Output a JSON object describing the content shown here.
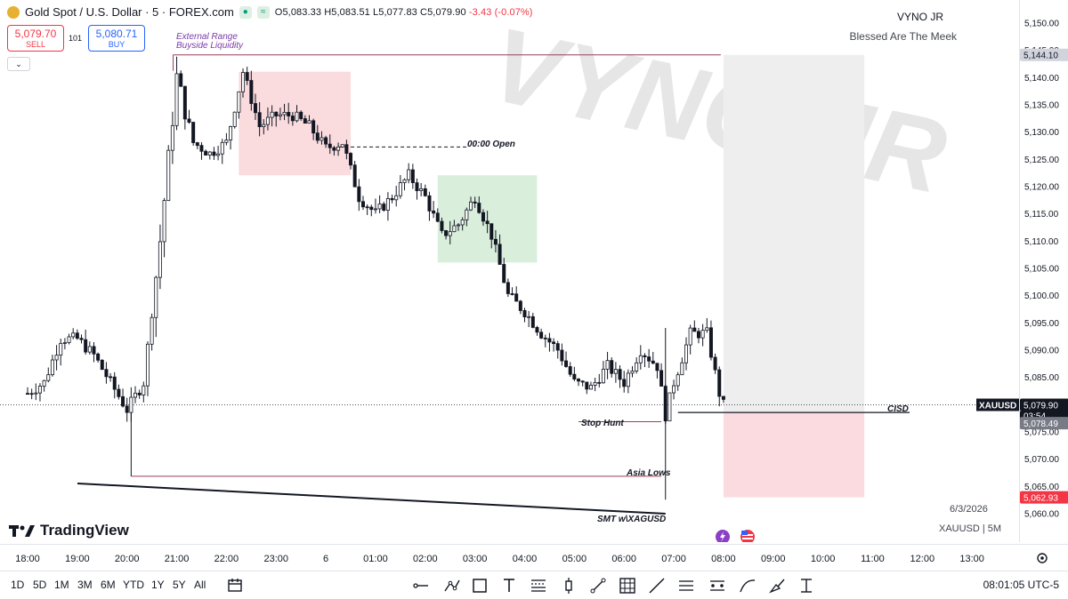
{
  "header": {
    "symbol_title": "Gold Spot / U.S. Dollar · 5 · FOREX.com",
    "ohlc": "O5,083.33 H5,083.51 L5,077.83 C5,079.90",
    "change": "-3.43 (-0.07%)",
    "sell_price": "5,079.70",
    "sell_label": "SELL",
    "spread": "101",
    "buy_price": "5,080.71",
    "buy_label": "BUY",
    "collapse_icon": "chevron-down-icon"
  },
  "branding": {
    "author": "VYNO JR",
    "tagline": "Blessed Are The Meek",
    "watermark": "VYNO JR",
    "platform": "TradingView",
    "date": "6/3/2026",
    "symbol_tf": "XAUUSD | 5M"
  },
  "annotations": {
    "external_range": "External Range",
    "buyside": "Buyside Liquidity",
    "open_line": "00:00 Open",
    "stop_hunt": "Stop Hunt",
    "asia_lows": "Asia Lows",
    "smt": "SMT w\\XAGUSD",
    "cisd": "CISD"
  },
  "price_tags": {
    "top": "5,144.10",
    "symbol": "XAUUSD",
    "current": "5,079.90",
    "countdown": "03:54",
    "entry": "5,078.49",
    "target": "5,062.93"
  },
  "bottom_bar": {
    "timeframes": [
      "1D",
      "5D",
      "1M",
      "3M",
      "6M",
      "YTD",
      "1Y",
      "5Y",
      "All"
    ],
    "clock": "08:01:05 UTC-5"
  },
  "colors": {
    "up": "#089981",
    "down": "#f23645",
    "candle": "#131722",
    "premium_zone": "#f9d7da",
    "discount_zone": "#d6ecd8",
    "short_sl_zone": "#eeeeee",
    "short_tp_zone": "#fcdbe0"
  },
  "chart_data": {
    "type": "candlestick",
    "interval": "5m",
    "ylim": [
      5058,
      5153
    ],
    "y_ticks": [
      5060,
      5065,
      5070,
      5075,
      5080,
      5085,
      5090,
      5095,
      5100,
      5105,
      5110,
      5115,
      5120,
      5125,
      5130,
      5135,
      5140,
      5145,
      5150
    ],
    "x_ticks": [
      "18:00",
      "19:00",
      "20:00",
      "21:00",
      "22:00",
      "23:00",
      "6",
      "01:00",
      "02:00",
      "03:00",
      "04:00",
      "05:00",
      "06:00",
      "07:00",
      "08:00",
      "09:00",
      "10:00",
      "11:00",
      "12:00",
      "13:00"
    ],
    "grid": false,
    "path": [
      [
        "18:00",
        5082
      ],
      [
        "18:20",
        5084
      ],
      [
        "18:40",
        5092
      ],
      [
        "19:00",
        5092
      ],
      [
        "19:20",
        5089
      ],
      [
        "19:40",
        5084
      ],
      [
        "20:00",
        5079
      ],
      [
        "20:20",
        5084
      ],
      [
        "20:40",
        5110
      ],
      [
        "21:00",
        5140
      ],
      [
        "21:20",
        5128
      ],
      [
        "21:40",
        5126
      ],
      [
        "22:00",
        5128
      ],
      [
        "22:20",
        5141
      ],
      [
        "22:40",
        5131
      ],
      [
        "23:00",
        5133
      ],
      [
        "23:20",
        5133
      ],
      [
        "23:40",
        5131
      ],
      [
        "00:00",
        5127
      ],
      [
        "00:20",
        5128
      ],
      [
        "00:40",
        5118
      ],
      [
        "01:00",
        5115
      ],
      [
        "01:20",
        5118
      ],
      [
        "01:40",
        5122
      ],
      [
        "02:00",
        5118
      ],
      [
        "02:20",
        5111
      ],
      [
        "02:40",
        5113
      ],
      [
        "03:00",
        5118
      ],
      [
        "03:20",
        5111
      ],
      [
        "03:40",
        5100
      ],
      [
        "04:00",
        5097
      ],
      [
        "04:20",
        5093
      ],
      [
        "04:40",
        5090
      ],
      [
        "05:00",
        5084
      ],
      [
        "05:20",
        5083
      ],
      [
        "05:40",
        5087
      ],
      [
        "06:00",
        5084
      ],
      [
        "06:20",
        5090
      ],
      [
        "06:40",
        5087
      ],
      [
        "06:50",
        5078
      ],
      [
        "07:00",
        5084
      ],
      [
        "07:20",
        5093
      ],
      [
        "07:40",
        5093
      ],
      [
        "07:55",
        5082
      ],
      [
        "08:00",
        5079.9
      ]
    ],
    "zones": [
      {
        "name": "premium-zone",
        "x": [
          "22:15",
          "00:30"
        ],
        "y": [
          5122,
          5141
        ]
      },
      {
        "name": "discount-zone",
        "x": [
          "02:15",
          "04:15"
        ],
        "y": [
          5106,
          5122
        ]
      }
    ],
    "short_position": {
      "x": [
        "08:00",
        "10:50"
      ],
      "stop_from": 5078.49,
      "stop_to": 5144.1,
      "entry": 5078.49,
      "target": 5062.93
    },
    "lines": {
      "buyside_liquidity": 5144.1,
      "open_0000": 5127.2,
      "stop_hunt": 5076.8,
      "asia_lows": 5066.8,
      "cisd": 5078.49
    }
  }
}
